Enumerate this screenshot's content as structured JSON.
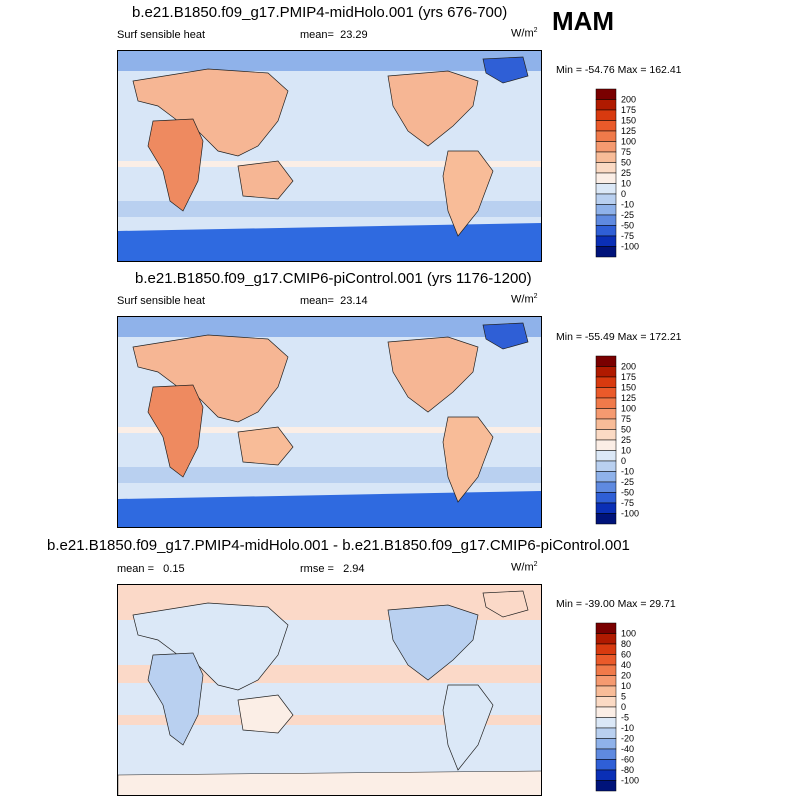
{
  "season": "MAM",
  "panels": [
    {
      "title": "b.e21.B1850.f09_g17.PMIP4-midHolo.001 (yrs 676-700)",
      "variable": "Surf sensible heat",
      "stat_label": "mean=",
      "stat_value": "23.29",
      "units": "W/m",
      "units_exp": "2",
      "minmax": "Min = -54.76 Max = 162.41",
      "colorbar_labels": [
        "200",
        "175",
        "150",
        "125",
        "100",
        "75",
        "50",
        "25",
        "10",
        "0",
        "-10",
        "-25",
        "-50",
        "-75",
        "-100"
      ]
    },
    {
      "title": "b.e21.B1850.f09_g17.CMIP6-piControl.001 (yrs 1176-1200)",
      "variable": "Surf sensible heat",
      "stat_label": "mean=",
      "stat_value": "23.14",
      "units": "W/m",
      "units_exp": "2",
      "minmax": "Min = -55.49 Max = 172.21",
      "colorbar_labels": [
        "200",
        "175",
        "150",
        "125",
        "100",
        "75",
        "50",
        "25",
        "10",
        "0",
        "-10",
        "-25",
        "-50",
        "-75",
        "-100"
      ]
    },
    {
      "title": "b.e21.B1850.f09_g17.PMIP4-midHolo.001 - b.e21.B1850.f09_g17.CMIP6-piControl.001",
      "stat_label": "mean =",
      "stat_value": "0.15",
      "rmse_label": "rmse =",
      "rmse_value": "2.94",
      "units": "W/m",
      "units_exp": "2",
      "minmax": "Min = -39.00 Max = 29.71",
      "colorbar_labels": [
        "100",
        "80",
        "60",
        "40",
        "20",
        "10",
        "5",
        "0",
        "-5",
        "-10",
        "-20",
        "-40",
        "-60",
        "-80",
        "-100"
      ]
    }
  ],
  "colors": {
    "colorbar": [
      "#7a0000",
      "#b01a00",
      "#d83a0f",
      "#ea5a2a",
      "#f07a4a",
      "#f59a70",
      "#f8bc98",
      "#fbdac4",
      "#fbeee6",
      "#dbe8f7",
      "#b9d0f0",
      "#8fb2ea",
      "#5f8ae0",
      "#2f5fd6",
      "#0a2fb6",
      "#00137a"
    ],
    "land_warm": "#f6b694",
    "land_hot": "#ee8a60",
    "ocean_light": "#d8e6f7",
    "ocean_blue": "#a9c4ee",
    "polar_blue": "#2f6ae0",
    "diff_ocean": "#dce8f7",
    "diff_pale_red": "#fbd9c8"
  }
}
